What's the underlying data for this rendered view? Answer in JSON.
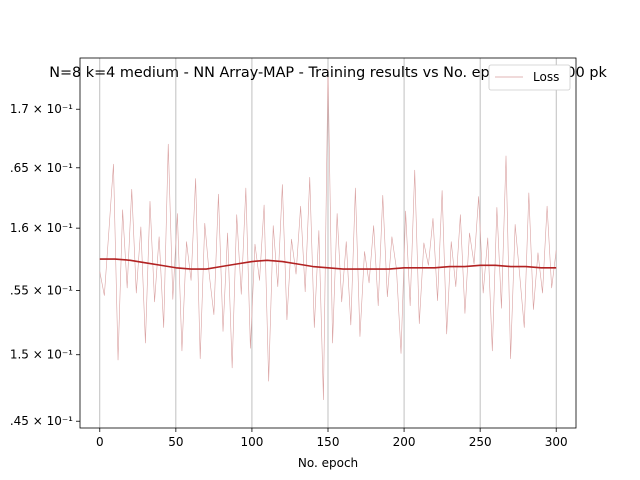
{
  "chart_data": {
    "type": "line",
    "title": "N=8 k=4 medium - NN Array-MAP - Training results vs No. epoch - 100000 pk",
    "xlabel": "No. epoch",
    "ylabel": "",
    "xlim": [
      -13,
      313
    ],
    "ylim": [
      0.1445,
      0.1745
    ],
    "yscale": "log",
    "grid": "x",
    "x_ticks": [
      0,
      50,
      100,
      150,
      200,
      250,
      300
    ],
    "x_tick_labels": [
      "0",
      "50",
      "100",
      "150",
      "200",
      "250",
      "300"
    ],
    "y_ticks": [
      0.145,
      0.15,
      0.155,
      0.16,
      0.165,
      0.17
    ],
    "y_tick_labels": [
      ".45 × 10⁻¹",
      "1.5 × 10⁻¹",
      ".55 × 10⁻¹",
      "1.6 × 10⁻¹",
      ".65 × 10⁻¹",
      "1.7 × 10⁻¹"
    ],
    "legend": {
      "placement": "top-right",
      "entries": [
        "Loss"
      ]
    },
    "series": [
      {
        "name": "Loss",
        "color": "#d9a0a0",
        "x": [
          0,
          3,
          6,
          9,
          12,
          15,
          18,
          21,
          24,
          27,
          30,
          33,
          36,
          39,
          42,
          45,
          48,
          51,
          54,
          57,
          60,
          63,
          66,
          69,
          72,
          75,
          78,
          81,
          84,
          87,
          90,
          93,
          96,
          99,
          102,
          105,
          108,
          111,
          114,
          117,
          120,
          123,
          126,
          129,
          132,
          135,
          138,
          141,
          144,
          147,
          150,
          153,
          156,
          159,
          162,
          165,
          168,
          171,
          174,
          177,
          180,
          183,
          186,
          189,
          192,
          195,
          198,
          201,
          204,
          207,
          210,
          213,
          216,
          219,
          222,
          225,
          228,
          231,
          234,
          237,
          240,
          243,
          246,
          249,
          252,
          255,
          258,
          261,
          264,
          267,
          270,
          273,
          276,
          279,
          282,
          285,
          288,
          291,
          294,
          297,
          300
        ],
        "y": [
          0.1565,
          0.1546,
          0.1598,
          0.1653,
          0.1496,
          0.1615,
          0.1552,
          0.1632,
          0.1548,
          0.1601,
          0.1509,
          0.1622,
          0.1541,
          0.1593,
          0.1521,
          0.167,
          0.1543,
          0.1612,
          0.1503,
          0.1589,
          0.1558,
          0.1641,
          0.1497,
          0.1604,
          0.1562,
          0.1531,
          0.1628,
          0.1518,
          0.1596,
          0.149,
          0.1611,
          0.1547,
          0.1633,
          0.1505,
          0.1587,
          0.1558,
          0.1619,
          0.148,
          0.1602,
          0.1553,
          0.1636,
          0.1527,
          0.1591,
          0.1563,
          0.1618,
          0.1549,
          0.1642,
          0.1521,
          0.1598,
          0.1466,
          0.1735,
          0.1509,
          0.1612,
          0.1541,
          0.1589,
          0.1523,
          0.1633,
          0.1514,
          0.1581,
          0.1556,
          0.1602,
          0.1538,
          0.1627,
          0.1545,
          0.1593,
          0.1567,
          0.1501,
          0.1614,
          0.1538,
          0.1648,
          0.1524,
          0.1588,
          0.157,
          0.1608,
          0.1542,
          0.1631,
          0.1516,
          0.1589,
          0.1553,
          0.1611,
          0.1532,
          0.1596,
          0.1571,
          0.1626,
          0.1548,
          0.1592,
          0.1503,
          0.1617,
          0.1536,
          0.166,
          0.1497,
          0.1603,
          0.1562,
          0.1521,
          0.1629,
          0.1535,
          0.158,
          0.1548,
          0.1618,
          0.1552,
          0.1582
        ]
      },
      {
        "name": "",
        "color": "#b22222",
        "x": [
          0,
          10,
          20,
          30,
          40,
          50,
          60,
          70,
          80,
          90,
          100,
          110,
          120,
          130,
          140,
          150,
          160,
          170,
          180,
          190,
          200,
          210,
          220,
          230,
          240,
          250,
          260,
          270,
          280,
          290,
          300
        ],
        "y": [
          0.1575,
          0.1575,
          0.1574,
          0.1572,
          0.157,
          0.1568,
          0.1567,
          0.1567,
          0.1569,
          0.1571,
          0.1573,
          0.1574,
          0.1573,
          0.1571,
          0.1569,
          0.1568,
          0.1567,
          0.1567,
          0.1567,
          0.1567,
          0.1568,
          0.1568,
          0.1568,
          0.1569,
          0.1569,
          0.157,
          0.157,
          0.1569,
          0.1569,
          0.1568,
          0.1568
        ]
      }
    ]
  }
}
